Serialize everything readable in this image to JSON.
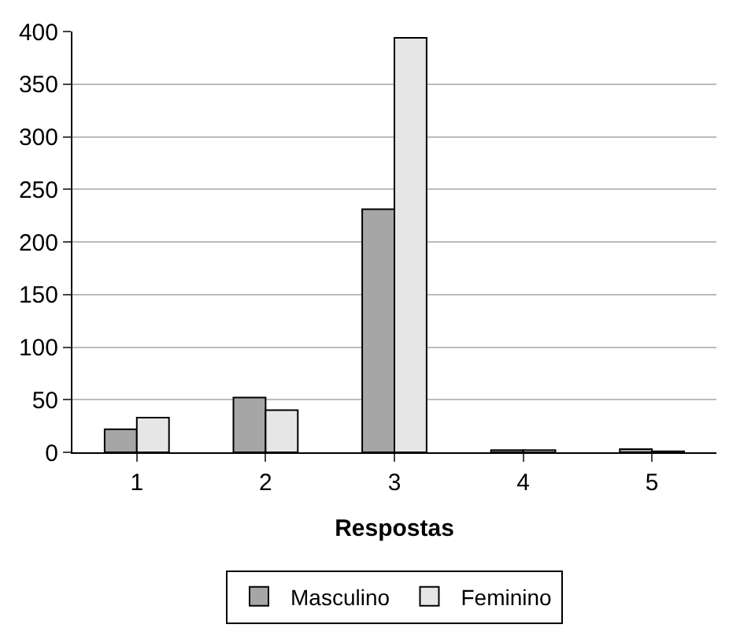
{
  "chart_data": {
    "type": "bar",
    "xlabel": "Respostas",
    "categories": [
      "1",
      "2",
      "3",
      "4",
      "5"
    ],
    "series": [
      {
        "name": "Masculino",
        "color": "#a6a6a6",
        "values": [
          22,
          52,
          231,
          2,
          3
        ]
      },
      {
        "name": "Feminino",
        "color": "#e6e6e6",
        "values": [
          33,
          40,
          394,
          2,
          1
        ]
      }
    ],
    "ylim": [
      0,
      400
    ],
    "yticks": [
      0,
      50,
      100,
      150,
      200,
      250,
      300,
      350,
      400
    ],
    "grid": "y",
    "legend": "bottom"
  }
}
